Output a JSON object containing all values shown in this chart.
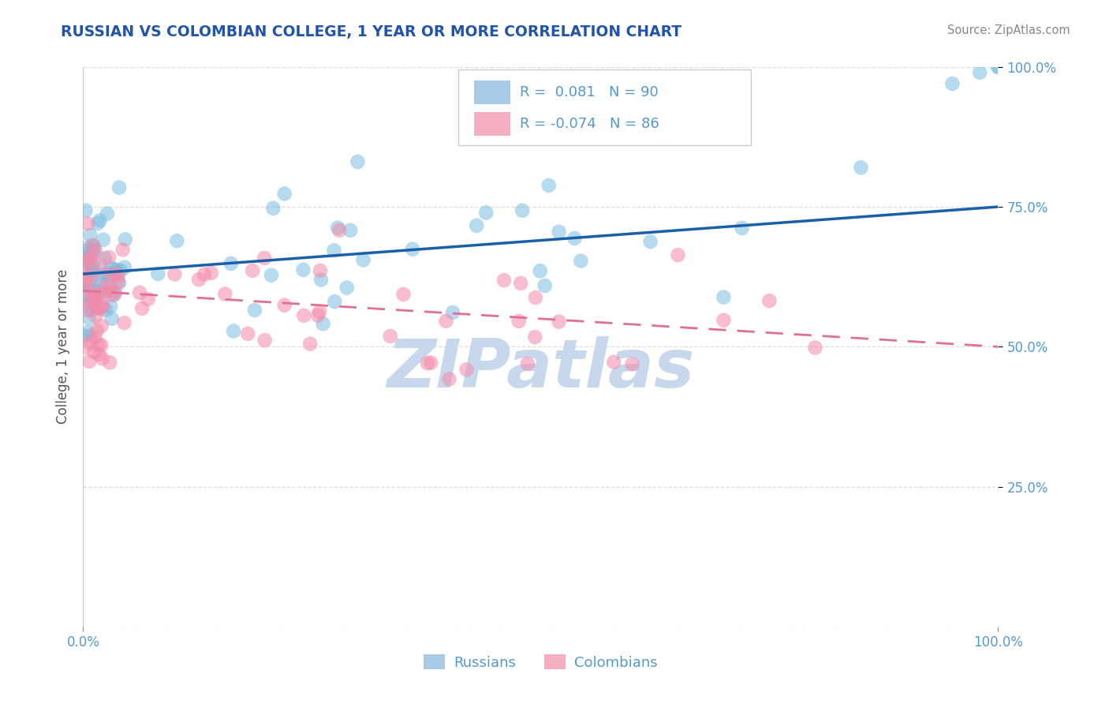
{
  "title": "RUSSIAN VS COLOMBIAN COLLEGE, 1 YEAR OR MORE CORRELATION CHART",
  "source_text": "Source: ZipAtlas.com",
  "ylabel": "College, 1 year or more",
  "russian_R": 0.081,
  "russian_N": 90,
  "colombian_R": -0.074,
  "colombian_N": 86,
  "russian_color": "#7bbde0",
  "colombian_color": "#f48aaa",
  "trendline_russian_color": "#1a5fa8",
  "trendline_colombian_color": "#e07090",
  "legend_color_russian": "#a8cce8",
  "legend_color_colombian": "#f4b0c0",
  "watermark_color": "#c8d8ec",
  "background_color": "#ffffff",
  "title_color": "#2255aa",
  "source_color": "#888888",
  "grid_color": "#dddddd",
  "tick_color": "#5599cc",
  "ylabel_color": "#555555",
  "rus_trend": [
    0.0,
    0.63,
    1.0,
    0.75
  ],
  "col_trend": [
    0.0,
    0.6,
    1.0,
    0.5
  ],
  "scatter_size": 180,
  "scatter_alpha": 0.55
}
